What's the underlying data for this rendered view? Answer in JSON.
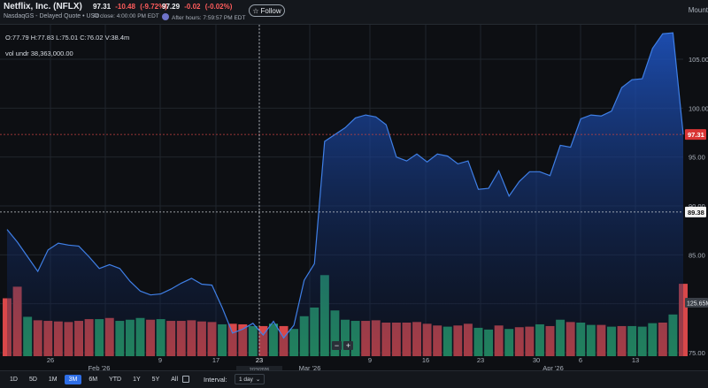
{
  "header": {
    "title": "Netflix, Inc. (NFLX)",
    "subtitle": "NasdaqGS - Delayed Quote • USD",
    "close_price": "97.31",
    "close_change": "-10.48",
    "close_change_pct": "(-9.72%)",
    "close_time": "At close: 4:00:00 PM EDT",
    "ah_price": "97.29",
    "ah_change": "-0.02",
    "ah_change_pct": "(-0.02%)",
    "ah_time": "After hours: 7:59:57 PM EDT",
    "follow_label": "Follow",
    "mount_text": "Mount"
  },
  "ohlc": "O:77.79  H:77.83  L:75.01  C:76.02  V:38.4m",
  "vol_under": "vol undr   38,363,000.00",
  "labels": {
    "last_price": "97.31",
    "crosshair_price": "89.38",
    "vol_label": "125.65M",
    "crosshair_date": "2/23/2026"
  },
  "footer": {
    "ranges": [
      "1D",
      "5D",
      "1M",
      "3M",
      "6M",
      "YTD",
      "1Y",
      "5Y",
      "All"
    ],
    "active_range": "3M",
    "interval_label": "Interval:",
    "interval_value": "1 day"
  },
  "zoom": {
    "minus": "−",
    "plus": "+"
  },
  "colors": {
    "line": "#3f7fe6",
    "up": "#28a36a",
    "down": "#d8484a",
    "last_price_bg": "#d93535",
    "crosshair_bg": "#f2f2f2"
  },
  "chart_data": {
    "type": "area",
    "y_ticks": [
      75,
      80,
      85,
      90,
      95,
      100,
      105
    ],
    "ylim": [
      75,
      108
    ],
    "x_tick_labels": [
      "26",
      "Feb '26",
      "9",
      "17",
      "23",
      "Mar '26",
      "9",
      "16",
      "23",
      "30",
      "Apr '26",
      "6",
      "13"
    ],
    "price": [
      87.6,
      86.3,
      84.8,
      83.3,
      85.5,
      86.2,
      86.0,
      85.9,
      84.8,
      83.6,
      84.0,
      83.6,
      82.3,
      81.3,
      80.9,
      81.0,
      81.5,
      82.1,
      82.6,
      82.0,
      81.9,
      79.6,
      77.0,
      77.4,
      78.0,
      76.8,
      78.2,
      76.5,
      77.8,
      82.4,
      84.1,
      96.6,
      97.3,
      98.0,
      99.0,
      99.3,
      99.1,
      98.3,
      95.0,
      94.6,
      95.3,
      94.5,
      95.3,
      95.1,
      94.3,
      94.6,
      91.7,
      91.8,
      93.6,
      91.0,
      92.5,
      93.5,
      93.5,
      93.1,
      96.2,
      96.0,
      98.9,
      99.3,
      99.2,
      99.7,
      102.1,
      102.9,
      103.0,
      106.1,
      107.6,
      107.7,
      97.3
    ],
    "volume": [
      1.0,
      1.2,
      0.68,
      0.62,
      0.61,
      0.6,
      0.59,
      0.61,
      0.64,
      0.64,
      0.66,
      0.61,
      0.63,
      0.66,
      0.63,
      0.64,
      0.61,
      0.61,
      0.62,
      0.6,
      0.59,
      0.55,
      0.56,
      0.55,
      0.52,
      0.52,
      0.56,
      0.52,
      0.47,
      0.69,
      0.84,
      1.4,
      0.79,
      0.63,
      0.61,
      0.61,
      0.62,
      0.58,
      0.58,
      0.58,
      0.59,
      0.56,
      0.53,
      0.51,
      0.53,
      0.56,
      0.49,
      0.46,
      0.53,
      0.47,
      0.5,
      0.51,
      0.55,
      0.52,
      0.63,
      0.59,
      0.58,
      0.54,
      0.54,
      0.51,
      0.52,
      0.52,
      0.51,
      0.57,
      0.58,
      0.72,
      1.25
    ],
    "volume_up": [
      false,
      false,
      true,
      false,
      false,
      false,
      false,
      false,
      false,
      true,
      false,
      true,
      true,
      true,
      false,
      true,
      false,
      false,
      false,
      false,
      false,
      true,
      false,
      false,
      true,
      false,
      true,
      false,
      true,
      true,
      true,
      true,
      true,
      true,
      true,
      false,
      false,
      false,
      false,
      false,
      false,
      false,
      false,
      true,
      false,
      false,
      true,
      true,
      false,
      true,
      false,
      false,
      true,
      false,
      true,
      false,
      true,
      true,
      false,
      true,
      false,
      true,
      true,
      true,
      false,
      true,
      false
    ]
  }
}
